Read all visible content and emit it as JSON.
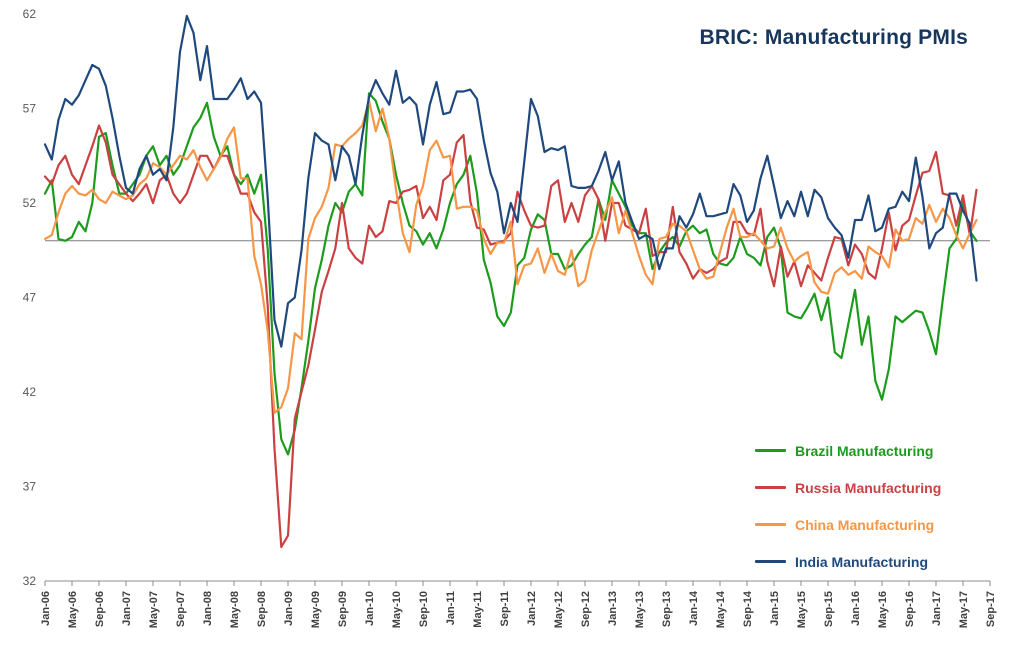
{
  "chart_data": {
    "type": "line",
    "title": "BRIC: Manufacturing PMIs",
    "x_start": "Jan-06",
    "x_end": "Jul-17",
    "x_frequency": "monthly",
    "x_tick_labels": [
      "Jan-06",
      "May-06",
      "Sep-06",
      "Jan-07",
      "May-07",
      "Sep-07",
      "Jan-08",
      "May-08",
      "Sep-08",
      "Jan-09",
      "May-09",
      "Sep-09",
      "Jan-10",
      "May-10",
      "Sep-10",
      "Jan-11",
      "May-11",
      "Sep-11",
      "Jan-12",
      "May-12",
      "Sep-12",
      "Jan-13",
      "May-13",
      "Sep-13",
      "Jan-14",
      "May-14",
      "Sep-14",
      "Jan-15",
      "May-15",
      "Sep-15",
      "Jan-16",
      "May-16",
      "Sep-16",
      "Jan-17",
      "May-17",
      "Sep-17"
    ],
    "y_ticks": [
      32,
      37,
      42,
      47,
      52,
      57,
      62
    ],
    "ylim": [
      32,
      62
    ],
    "reference_line": 50,
    "grid": "reference-line-only",
    "legend_position": "inside-right",
    "series": [
      {
        "name": "Brazil Manufacturing",
        "color": "#1d9b1d",
        "values": [
          52.5,
          53.2,
          50.1,
          50.0,
          50.2,
          51.0,
          50.5,
          52.0,
          55.5,
          55.7,
          54.0,
          52.5,
          52.5,
          53.0,
          53.5,
          54.5,
          55.0,
          54.0,
          54.5,
          53.5,
          54.0,
          55.0,
          56.0,
          56.5,
          57.3,
          55.5,
          54.5,
          55.0,
          53.5,
          53.0,
          53.5,
          52.5,
          53.5,
          49.5,
          43.0,
          39.5,
          38.7,
          40.0,
          42.2,
          44.7,
          47.5,
          49.0,
          50.8,
          52.0,
          51.5,
          52.6,
          53.0,
          52.4,
          57.8,
          57.4,
          56.3,
          55.4,
          53.5,
          52.0,
          50.8,
          50.5,
          49.8,
          50.4,
          49.6,
          50.6,
          52.0,
          53.0,
          53.5,
          54.5,
          52.5,
          49.0,
          47.8,
          46.0,
          45.5,
          46.2,
          48.7,
          49.1,
          50.6,
          51.4,
          51.1,
          49.3,
          49.3,
          48.5,
          48.7,
          49.3,
          49.8,
          50.2,
          52.2,
          51.1,
          53.2,
          52.5,
          51.8,
          50.8,
          50.4,
          50.4,
          48.5,
          49.4,
          49.9,
          50.2,
          49.7,
          50.5,
          50.8,
          50.4,
          50.6,
          49.3,
          48.8,
          48.7,
          49.1,
          50.2,
          49.3,
          49.1,
          48.7,
          50.2,
          50.7,
          49.6,
          46.2,
          46.0,
          45.9,
          46.5,
          47.2,
          45.8,
          47.0,
          44.1,
          43.8,
          45.6,
          47.4,
          44.5,
          46.0,
          42.6,
          41.6,
          43.2,
          46.0,
          45.7,
          46.0,
          46.3,
          46.2,
          45.2,
          44.0,
          46.9,
          49.6,
          50.1,
          52.0,
          50.5,
          50.0
        ]
      },
      {
        "name": "Russia Manufacturing",
        "color": "#cb4142",
        "values": [
          53.4,
          53.0,
          54.0,
          54.5,
          53.5,
          53.0,
          54.0,
          55.0,
          56.1,
          55.2,
          53.5,
          53.0,
          52.5,
          52.1,
          52.5,
          53.0,
          52.0,
          53.2,
          53.5,
          52.5,
          52.0,
          52.5,
          53.5,
          54.5,
          54.5,
          53.8,
          54.5,
          54.5,
          53.5,
          52.5,
          52.5,
          51.5,
          51.0,
          46.5,
          39.0,
          33.8,
          34.4,
          40.6,
          42.0,
          43.4,
          45.3,
          47.3,
          48.4,
          49.6,
          52.0,
          49.6,
          49.1,
          48.8,
          50.8,
          50.2,
          50.5,
          52.1,
          52.0,
          52.6,
          52.7,
          52.9,
          51.2,
          51.8,
          51.1,
          53.2,
          53.5,
          55.2,
          55.6,
          52.1,
          50.7,
          50.6,
          49.8,
          49.9,
          50.0,
          50.4,
          52.6,
          51.6,
          50.8,
          50.7,
          50.8,
          52.9,
          53.2,
          51.0,
          52.0,
          51.0,
          52.4,
          52.9,
          52.2,
          50.0,
          52.0,
          52.0,
          50.8,
          50.6,
          50.4,
          51.7,
          49.2,
          49.4,
          49.4,
          51.8,
          49.4,
          48.8,
          48.0,
          48.5,
          48.3,
          48.5,
          48.9,
          49.1,
          51.0,
          51.0,
          50.4,
          50.3,
          51.7,
          48.9,
          47.6,
          49.7,
          48.1,
          48.9,
          47.6,
          48.7,
          48.3,
          47.9,
          49.1,
          50.2,
          50.1,
          48.7,
          49.8,
          49.3,
          48.3,
          48.0,
          49.6,
          51.5,
          49.5,
          50.8,
          51.1,
          52.4,
          53.6,
          53.7,
          54.7,
          52.5,
          52.4,
          50.8,
          52.4,
          50.3,
          52.7
        ]
      },
      {
        "name": "China Manufacturing",
        "color": "#f79646",
        "values": [
          50.1,
          50.3,
          51.5,
          52.5,
          52.9,
          52.5,
          52.4,
          52.7,
          52.2,
          52.0,
          52.6,
          52.4,
          52.2,
          52.4,
          53.0,
          53.3,
          54.1,
          53.9,
          53.5,
          54.0,
          54.5,
          54.3,
          54.8,
          53.9,
          53.2,
          53.8,
          54.4,
          55.4,
          56.0,
          53.3,
          53.3,
          49.2,
          47.7,
          45.2,
          40.9,
          41.2,
          42.2,
          45.1,
          44.8,
          50.1,
          51.2,
          51.8,
          52.8,
          55.1,
          55.0,
          55.4,
          55.7,
          56.1,
          57.4,
          55.8,
          57.0,
          55.4,
          52.7,
          50.4,
          49.4,
          51.9,
          52.9,
          54.8,
          55.3,
          54.4,
          54.5,
          51.7,
          51.8,
          51.8,
          51.6,
          50.1,
          49.3,
          49.9,
          49.9,
          51.0,
          47.7,
          48.7,
          48.8,
          49.6,
          48.3,
          49.3,
          48.4,
          48.2,
          49.5,
          47.6,
          47.9,
          49.5,
          50.5,
          51.5,
          52.3,
          50.4,
          51.6,
          50.4,
          49.2,
          48.2,
          47.7,
          50.1,
          50.2,
          50.9,
          50.8,
          50.5,
          49.5,
          48.5,
          48.0,
          48.1,
          49.4,
          50.7,
          51.7,
          50.2,
          50.2,
          50.4,
          50.0,
          49.6,
          49.7,
          50.7,
          49.6,
          48.9,
          49.2,
          49.4,
          47.8,
          47.3,
          47.2,
          48.3,
          48.6,
          48.2,
          48.4,
          48.0,
          49.7,
          49.4,
          49.2,
          48.6,
          50.6,
          50.0,
          50.1,
          51.2,
          50.9,
          51.9,
          51.0,
          51.7,
          51.2,
          50.3,
          49.6,
          50.4,
          51.1
        ]
      },
      {
        "name": "India Manufacturing",
        "color": "#1f497d",
        "values": [
          55.1,
          54.3,
          56.4,
          57.5,
          57.2,
          57.7,
          58.5,
          59.3,
          59.1,
          58.2,
          56.5,
          54.5,
          52.8,
          52.5,
          53.8,
          54.5,
          53.5,
          53.8,
          53.2,
          56.0,
          60.0,
          61.9,
          61.0,
          58.5,
          60.3,
          57.5,
          57.5,
          57.5,
          58.0,
          58.6,
          57.5,
          57.9,
          57.3,
          52.2,
          45.8,
          44.4,
          46.7,
          47.0,
          49.5,
          53.3,
          55.7,
          55.3,
          55.1,
          53.2,
          55.0,
          54.5,
          53.0,
          55.6,
          57.6,
          58.5,
          57.8,
          57.2,
          59.0,
          57.3,
          57.6,
          57.2,
          55.1,
          57.2,
          58.4,
          56.7,
          56.8,
          57.9,
          57.9,
          58.0,
          57.5,
          55.3,
          53.6,
          52.6,
          50.4,
          52.0,
          51.0,
          54.2,
          57.5,
          56.6,
          54.7,
          54.9,
          54.8,
          55.0,
          52.9,
          52.8,
          52.8,
          52.9,
          53.7,
          54.7,
          53.2,
          54.2,
          52.0,
          51.0,
          50.1,
          50.3,
          50.1,
          48.5,
          49.6,
          49.6,
          51.3,
          50.7,
          51.4,
          52.5,
          51.3,
          51.3,
          51.4,
          51.5,
          53.0,
          52.4,
          51.0,
          51.6,
          53.3,
          54.5,
          52.9,
          51.2,
          52.1,
          51.3,
          52.6,
          51.3,
          52.7,
          52.3,
          51.2,
          50.7,
          50.3,
          49.1,
          51.1,
          51.1,
          52.4,
          50.5,
          50.7,
          51.7,
          51.8,
          52.6,
          52.1,
          54.4,
          52.3,
          49.6,
          50.4,
          50.7,
          52.5,
          52.5,
          51.6,
          50.9,
          47.9
        ]
      }
    ]
  },
  "colors": {
    "background": "#ffffff",
    "axis": "#8c8c8c",
    "reference_line": "#7f7f7f",
    "x_label": "#3f3f3f",
    "y_label": "#595959",
    "title": "#17365d"
  }
}
